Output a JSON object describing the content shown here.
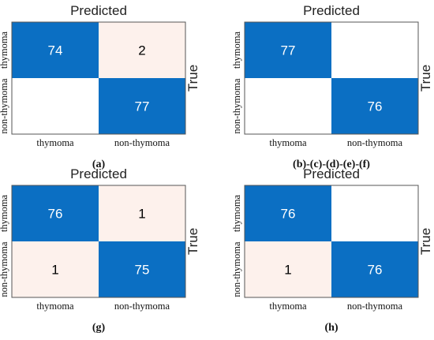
{
  "figure": {
    "panels": [
      {
        "caption": "(a)",
        "top_label": "Predicted",
        "right_label": "True",
        "x_ticks": [
          "thymoma",
          "non-thymoma"
        ],
        "y_ticks": [
          "thymoma",
          "non-thymoma"
        ],
        "cells": [
          [
            "74",
            "2"
          ],
          [
            "",
            "77"
          ]
        ]
      },
      {
        "caption": "(b)-(c)-(d)-(e)-(f)",
        "top_label": "Predicted",
        "right_label": "True",
        "x_ticks": [
          "thymoma",
          "non-thymoma"
        ],
        "y_ticks": [
          "thymoma",
          "non-thymoma"
        ],
        "cells": [
          [
            "77",
            ""
          ],
          [
            "",
            "76"
          ]
        ]
      },
      {
        "caption": "(g)",
        "top_label": "Predicted",
        "right_label": "True",
        "x_ticks": [
          "thymoma",
          "non-thymoma"
        ],
        "y_ticks": [
          "thymoma",
          "non-thymoma"
        ],
        "cells": [
          [
            "76",
            "1"
          ],
          [
            "1",
            "75"
          ]
        ]
      },
      {
        "caption": "(h)",
        "top_label": "Predicted",
        "right_label": "True",
        "x_ticks": [
          "thymoma",
          "non-thymoma"
        ],
        "y_ticks": [
          "thymoma",
          "non-thymoma"
        ],
        "cells": [
          [
            "76",
            ""
          ],
          [
            "1",
            "76"
          ]
        ]
      }
    ]
  },
  "chart_data": [
    {
      "type": "heatmap",
      "title": "Predicted",
      "ylabel": "True",
      "x_categories": [
        "thymoma",
        "non-thymoma"
      ],
      "y_categories": [
        "thymoma",
        "non-thymoma"
      ],
      "values": [
        [
          74,
          2
        ],
        [
          0,
          77
        ]
      ],
      "caption": "(a)"
    },
    {
      "type": "heatmap",
      "title": "Predicted",
      "ylabel": "True",
      "x_categories": [
        "thymoma",
        "non-thymoma"
      ],
      "y_categories": [
        "thymoma",
        "non-thymoma"
      ],
      "values": [
        [
          77,
          0
        ],
        [
          0,
          76
        ]
      ],
      "caption": "(b)-(c)-(d)-(e)-(f)"
    },
    {
      "type": "heatmap",
      "title": "Predicted",
      "ylabel": "True",
      "x_categories": [
        "thymoma",
        "non-thymoma"
      ],
      "y_categories": [
        "thymoma",
        "non-thymoma"
      ],
      "values": [
        [
          76,
          1
        ],
        [
          1,
          75
        ]
      ],
      "caption": "(g)"
    },
    {
      "type": "heatmap",
      "title": "Predicted",
      "ylabel": "True",
      "x_categories": [
        "thymoma",
        "non-thymoma"
      ],
      "y_categories": [
        "thymoma",
        "non-thymoma"
      ],
      "values": [
        [
          76,
          0
        ],
        [
          1,
          76
        ]
      ],
      "caption": "(h)"
    }
  ],
  "colors": {
    "high": "#0b6fc3",
    "low": "#fdf1ec",
    "zero": "#ffffff",
    "border": "#555555",
    "high_text": "#ffffff",
    "low_text": "#000000"
  }
}
